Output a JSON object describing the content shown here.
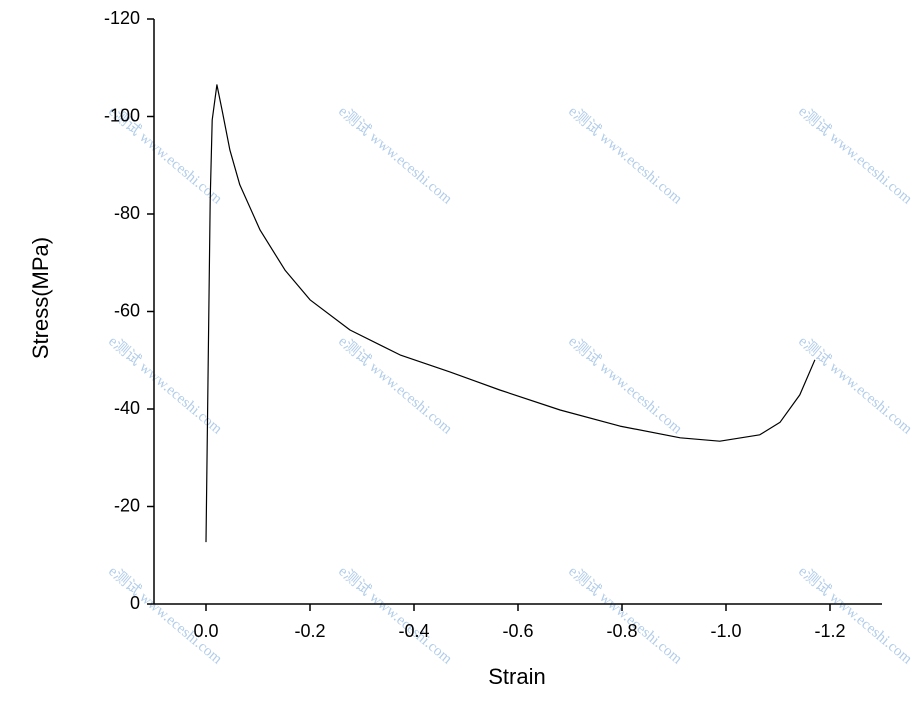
{
  "chart_data": {
    "type": "line",
    "x_label": "Strain",
    "y_label": "Stress(MPa)",
    "watermark": "e测试 www.eceshi.com",
    "x": [
      0.0,
      -0.008,
      -0.012,
      -0.021,
      -0.031,
      -0.046,
      -0.065,
      -0.104,
      -0.152,
      -0.2,
      -0.277,
      -0.373,
      -0.469,
      -0.565,
      -0.681,
      -0.796,
      -0.912,
      -0.988,
      -1.065,
      -1.104,
      -1.142,
      -1.171
    ],
    "series": [
      {
        "color": "#000000",
        "values": [
          -12.7,
          -82.9,
          -99.3,
          -106.5,
          -101.3,
          -93.1,
          -86.0,
          -76.7,
          -68.5,
          -62.4,
          -56.2,
          -51.1,
          -47.6,
          -43.9,
          -39.8,
          -36.5,
          -34.1,
          -33.4,
          -34.7,
          -37.3,
          -42.9,
          -50.1
        ]
      }
    ],
    "xlim": [
      0.1,
      -1.3
    ],
    "xticks": [
      {
        "value": 0,
        "label": "0.0"
      },
      -0.2,
      -0.4,
      -0.6,
      -0.8,
      {
        "value": -1,
        "label": "-1.0"
      },
      -1.2
    ],
    "ylim": [
      0,
      -120
    ],
    "yticks": [
      0,
      -20,
      -40,
      -60,
      -80,
      -100,
      -120
    ]
  }
}
